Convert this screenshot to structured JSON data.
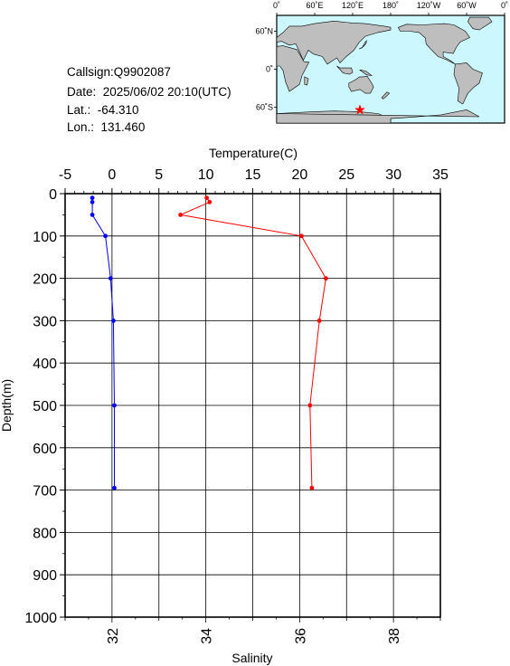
{
  "station": {
    "callsign": "Callsign:Q9902087",
    "date": "Date:  2025/06/02 20:10(UTC)",
    "lat": "Lat.:  -64.310",
    "lon": "Lon.:  131.460"
  },
  "map": {
    "top_labels": [
      "0˚",
      "60˚E",
      "120˚E",
      "180˚",
      "120˚W",
      "60˚W",
      "0˚"
    ],
    "left_labels": [
      "60˚N",
      "0˚",
      "60˚S"
    ],
    "ocean_color": "#cdf7ff",
    "land_color": "#bebebe",
    "marker": {
      "lon": 131.46,
      "lat": -64.31,
      "color": "#ff0000",
      "shape": "star"
    }
  },
  "chart_data": {
    "type": "line",
    "title": "",
    "top_axis": {
      "label": "Temperature(C)",
      "range": [
        -5,
        35
      ],
      "ticks": [
        -5,
        0,
        5,
        10,
        15,
        20,
        25,
        30,
        35
      ]
    },
    "bottom_axis": {
      "label": "Salinity",
      "range": [
        31,
        39
      ],
      "ticks": [
        32,
        34,
        36,
        38
      ]
    },
    "y_axis": {
      "label": "Depth(m)",
      "range": [
        0,
        1000
      ],
      "inverted": true,
      "ticks": [
        0,
        100,
        200,
        300,
        400,
        500,
        600,
        700,
        800,
        900,
        1000
      ]
    },
    "grid": true,
    "series": [
      {
        "name": "",
        "axis": "temperature",
        "color": "#ff0000",
        "points": [
          [
            10.1,
            10
          ],
          [
            10.4,
            20
          ],
          [
            7.3,
            50
          ],
          [
            20.2,
            100
          ],
          [
            22.8,
            200
          ],
          [
            22.1,
            300
          ],
          [
            21.1,
            500
          ],
          [
            21.3,
            695
          ]
        ]
      },
      {
        "name": "",
        "axis": "salinity",
        "color": "#0000ff",
        "points": [
          [
            31.58,
            10
          ],
          [
            31.58,
            20
          ],
          [
            31.58,
            50
          ],
          [
            31.86,
            100
          ],
          [
            31.97,
            200
          ],
          [
            32.03,
            300
          ],
          [
            32.05,
            500
          ],
          [
            32.05,
            695
          ]
        ]
      }
    ]
  }
}
